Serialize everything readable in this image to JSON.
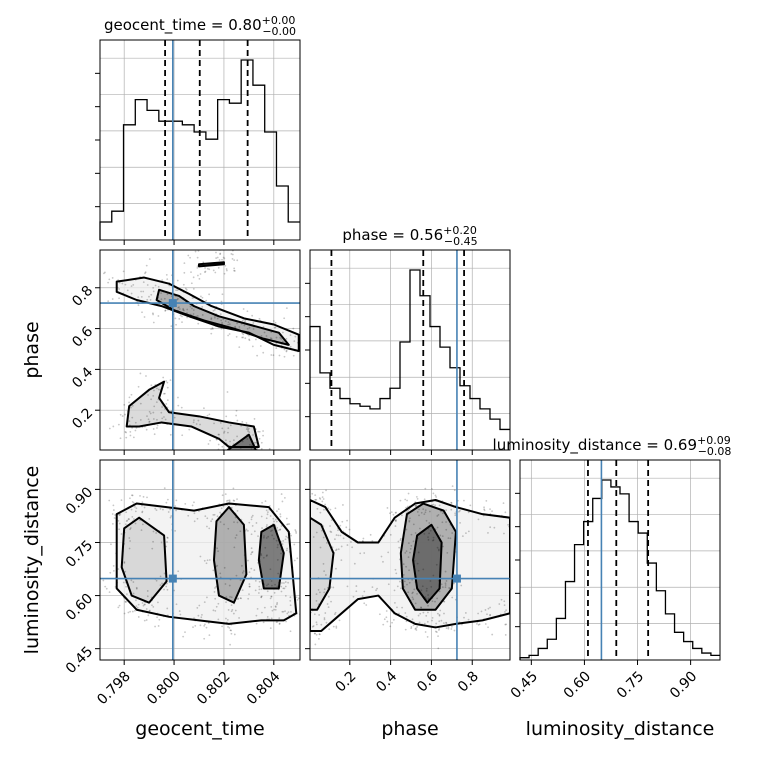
{
  "chart_data": {
    "type": "corner",
    "parameters": [
      "geocent_time",
      "phase",
      "luminosity_distance"
    ],
    "axis_labels": [
      "geocent_time",
      "phase",
      "luminosity_distance"
    ],
    "titles": [
      {
        "param": "geocent_time",
        "text": "geocent_time = 0.80",
        "sup": "+0.00",
        "sub": "−0.00"
      },
      {
        "param": "phase",
        "text": "phase = 0.56",
        "sup": "+0.20",
        "sub": "−0.45"
      },
      {
        "param": "luminosity_distance",
        "text": "luminosity_distance = 0.69",
        "sup": "+0.09",
        "sub": "−0.08"
      }
    ],
    "ranges": {
      "geocent_time": [
        0.79703,
        0.80505
      ],
      "phase": [
        0.005,
        0.985
      ],
      "luminosity_distance": [
        0.418,
        0.983
      ]
    },
    "ticks": {
      "geocent_time": {
        "values": [
          0.798,
          0.8,
          0.802,
          0.804
        ],
        "labels": [
          "0.798",
          "0.800",
          "0.802",
          "0.804"
        ]
      },
      "phase": {
        "values": [
          0.2,
          0.4,
          0.6,
          0.8
        ],
        "labels": [
          "0.2",
          "0.4",
          "0.6",
          "0.8"
        ]
      },
      "luminosity_distance": {
        "values": [
          0.45,
          0.6,
          0.75,
          0.9
        ],
        "labels": [
          "0.45",
          "0.60",
          "0.75",
          "0.90"
        ]
      }
    },
    "quantiles": {
      "geocent_time": [
        0.79964,
        0.80103,
        0.80295
      ],
      "phase": [
        0.11,
        0.56,
        0.76
      ],
      "luminosity_distance": [
        0.61,
        0.69,
        0.78
      ]
    },
    "truths": {
      "geocent_time": 0.79995,
      "phase": 0.725,
      "luminosity_distance": 0.648
    },
    "histograms": {
      "geocent_time": [
        0.05,
        0.08,
        0.32,
        0.39,
        0.36,
        0.33,
        0.33,
        0.32,
        0.3,
        0.28,
        0.39,
        0.38,
        0.5,
        0.43,
        0.3,
        0.15,
        0.05
      ],
      "phase": [
        0.48,
        0.3,
        0.24,
        0.2,
        0.18,
        0.17,
        0.16,
        0.2,
        0.24,
        0.42,
        0.7,
        0.6,
        0.48,
        0.4,
        0.32,
        0.25,
        0.2,
        0.16,
        0.12,
        0.08
      ],
      "luminosity_distance": [
        0.01,
        0.02,
        0.05,
        0.09,
        0.18,
        0.34,
        0.5,
        0.6,
        0.7,
        0.78,
        0.75,
        0.72,
        0.6,
        0.55,
        0.42,
        0.3,
        0.2,
        0.12,
        0.08,
        0.05,
        0.03,
        0.02
      ]
    },
    "contours": {
      "phase_vs_geocent_time": [
        [
          [
            0.7977,
            0.83
          ],
          [
            0.7988,
            0.85
          ],
          [
            0.7998,
            0.82
          ],
          [
            0.8006,
            0.77
          ],
          [
            0.8015,
            0.71
          ],
          [
            0.8028,
            0.65
          ],
          [
            0.804,
            0.62
          ],
          [
            0.805,
            0.57
          ],
          [
            0.805,
            0.49
          ],
          [
            0.804,
            0.52
          ],
          [
            0.803,
            0.58
          ],
          [
            0.8018,
            0.61
          ],
          [
            0.8006,
            0.66
          ],
          [
            0.7995,
            0.71
          ],
          [
            0.7985,
            0.74
          ],
          [
            0.7977,
            0.78
          ]
        ],
        [
          [
            0.7981,
            0.12
          ],
          [
            0.7982,
            0.22
          ],
          [
            0.799,
            0.3
          ],
          [
            0.7996,
            0.34
          ],
          [
            0.7994,
            0.26
          ],
          [
            0.7998,
            0.19
          ],
          [
            0.801,
            0.17
          ],
          [
            0.8022,
            0.14
          ],
          [
            0.8032,
            0.12
          ],
          [
            0.8034,
            0.02
          ],
          [
            0.8022,
            0.02
          ],
          [
            0.8018,
            0.06
          ],
          [
            0.8007,
            0.12
          ],
          [
            0.7995,
            0.14
          ],
          [
            0.7986,
            0.12
          ]
        ],
        [
          [
            0.7994,
            0.79
          ],
          [
            0.8002,
            0.76
          ],
          [
            0.8008,
            0.71
          ],
          [
            0.8018,
            0.66
          ],
          [
            0.803,
            0.62
          ],
          [
            0.8042,
            0.58
          ],
          [
            0.8046,
            0.52
          ],
          [
            0.8036,
            0.55
          ],
          [
            0.8024,
            0.6
          ],
          [
            0.8012,
            0.64
          ],
          [
            0.8,
            0.69
          ],
          [
            0.7993,
            0.74
          ]
        ],
        [
          [
            0.801,
            0.915
          ],
          [
            0.802,
            0.925
          ],
          [
            0.802,
            0.915
          ],
          [
            0.801,
            0.905
          ]
        ],
        [
          [
            0.8021,
            0.0
          ],
          [
            0.803,
            0.08
          ],
          [
            0.8033,
            0.0
          ]
        ]
      ],
      "luminosity_distance_vs_geocent_time": [
        [
          [
            0.7977,
            0.83
          ],
          [
            0.7985,
            0.86
          ],
          [
            0.7997,
            0.85
          ],
          [
            0.8008,
            0.84
          ],
          [
            0.8022,
            0.86
          ],
          [
            0.8038,
            0.85
          ],
          [
            0.8046,
            0.78
          ],
          [
            0.8049,
            0.55
          ],
          [
            0.8044,
            0.53
          ],
          [
            0.8035,
            0.53
          ],
          [
            0.8022,
            0.52
          ],
          [
            0.801,
            0.53
          ],
          [
            0.7998,
            0.54
          ],
          [
            0.7985,
            0.56
          ],
          [
            0.7977,
            0.62
          ]
        ],
        [
          [
            0.798,
            0.79
          ],
          [
            0.7986,
            0.82
          ],
          [
            0.7996,
            0.77
          ],
          [
            0.7997,
            0.64
          ],
          [
            0.799,
            0.58
          ],
          [
            0.7983,
            0.6
          ],
          [
            0.7979,
            0.68
          ]
        ],
        [
          [
            0.8017,
            0.81
          ],
          [
            0.8022,
            0.85
          ],
          [
            0.8028,
            0.8
          ],
          [
            0.8029,
            0.66
          ],
          [
            0.8024,
            0.58
          ],
          [
            0.8018,
            0.6
          ],
          [
            0.8016,
            0.7
          ]
        ],
        [
          [
            0.8035,
            0.78
          ],
          [
            0.804,
            0.8
          ],
          [
            0.8044,
            0.72
          ],
          [
            0.8042,
            0.62
          ],
          [
            0.8036,
            0.62
          ],
          [
            0.8034,
            0.7
          ]
        ]
      ],
      "luminosity_distance_vs_phase": [
        [
          [
            0.005,
            0.87
          ],
          [
            0.08,
            0.85
          ],
          [
            0.16,
            0.78
          ],
          [
            0.24,
            0.75
          ],
          [
            0.34,
            0.75
          ],
          [
            0.42,
            0.82
          ],
          [
            0.52,
            0.86
          ],
          [
            0.62,
            0.87
          ],
          [
            0.72,
            0.85
          ],
          [
            0.85,
            0.83
          ],
          [
            0.985,
            0.82
          ],
          [
            0.985,
            0.55
          ],
          [
            0.85,
            0.53
          ],
          [
            0.72,
            0.52
          ],
          [
            0.62,
            0.51
          ],
          [
            0.52,
            0.52
          ],
          [
            0.42,
            0.55
          ],
          [
            0.34,
            0.6
          ],
          [
            0.24,
            0.59
          ],
          [
            0.14,
            0.54
          ],
          [
            0.06,
            0.5
          ],
          [
            0.005,
            0.5
          ]
        ],
        [
          [
            0.005,
            0.82
          ],
          [
            0.06,
            0.8
          ],
          [
            0.12,
            0.72
          ],
          [
            0.1,
            0.62
          ],
          [
            0.04,
            0.56
          ],
          [
            0.005,
            0.56
          ]
        ],
        [
          [
            0.48,
            0.83
          ],
          [
            0.56,
            0.86
          ],
          [
            0.66,
            0.84
          ],
          [
            0.72,
            0.78
          ],
          [
            0.7,
            0.62
          ],
          [
            0.62,
            0.56
          ],
          [
            0.52,
            0.56
          ],
          [
            0.46,
            0.62
          ],
          [
            0.45,
            0.72
          ]
        ],
        [
          [
            0.53,
            0.77
          ],
          [
            0.6,
            0.8
          ],
          [
            0.65,
            0.75
          ],
          [
            0.64,
            0.62
          ],
          [
            0.58,
            0.58
          ],
          [
            0.53,
            0.62
          ],
          [
            0.51,
            0.7
          ]
        ]
      ]
    }
  }
}
